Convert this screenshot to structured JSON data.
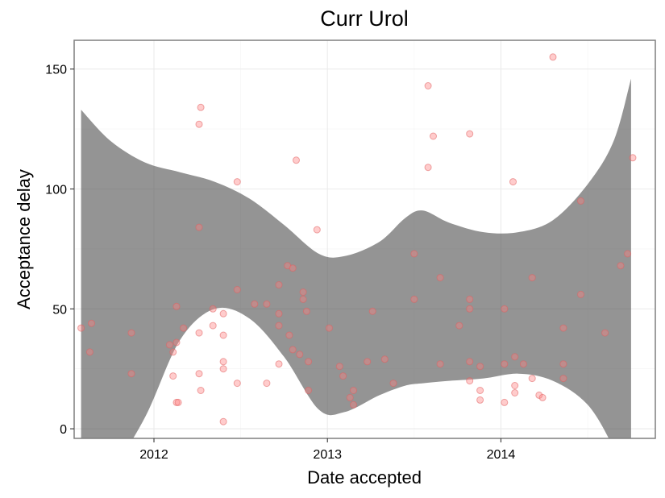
{
  "chart_data": {
    "type": "scatter",
    "title": "Curr Urol",
    "xlabel": "Date accepted",
    "ylabel": "Acceptance delay",
    "x_ticks": [
      "2012",
      "2013",
      "2014"
    ],
    "y_ticks": [
      "0",
      "50",
      "100",
      "150"
    ],
    "xlim": [
      2011.54,
      2014.89
    ],
    "ylim": [
      -4,
      162
    ],
    "grid": true,
    "point_color": "#ff7f7f",
    "band_color": "#4d4d4d",
    "points": [
      {
        "x": 2011.58,
        "y": 42
      },
      {
        "x": 2011.64,
        "y": 44
      },
      {
        "x": 2011.63,
        "y": 32
      },
      {
        "x": 2011.87,
        "y": 40
      },
      {
        "x": 2011.87,
        "y": 23
      },
      {
        "x": 2012.09,
        "y": 35
      },
      {
        "x": 2012.11,
        "y": 32
      },
      {
        "x": 2012.11,
        "y": 22
      },
      {
        "x": 2012.13,
        "y": 51
      },
      {
        "x": 2012.13,
        "y": 36
      },
      {
        "x": 2012.13,
        "y": 11
      },
      {
        "x": 2012.14,
        "y": 11
      },
      {
        "x": 2012.17,
        "y": 42
      },
      {
        "x": 2012.26,
        "y": 127
      },
      {
        "x": 2012.27,
        "y": 134
      },
      {
        "x": 2012.26,
        "y": 84
      },
      {
        "x": 2012.26,
        "y": 40
      },
      {
        "x": 2012.26,
        "y": 23
      },
      {
        "x": 2012.27,
        "y": 16
      },
      {
        "x": 2012.34,
        "y": 50
      },
      {
        "x": 2012.34,
        "y": 43
      },
      {
        "x": 2012.4,
        "y": 48
      },
      {
        "x": 2012.4,
        "y": 39
      },
      {
        "x": 2012.4,
        "y": 28
      },
      {
        "x": 2012.4,
        "y": 25
      },
      {
        "x": 2012.4,
        "y": 3
      },
      {
        "x": 2012.48,
        "y": 103
      },
      {
        "x": 2012.48,
        "y": 58
      },
      {
        "x": 2012.48,
        "y": 19
      },
      {
        "x": 2012.58,
        "y": 52
      },
      {
        "x": 2012.65,
        "y": 52
      },
      {
        "x": 2012.65,
        "y": 19
      },
      {
        "x": 2012.72,
        "y": 60
      },
      {
        "x": 2012.72,
        "y": 48
      },
      {
        "x": 2012.72,
        "y": 43
      },
      {
        "x": 2012.72,
        "y": 27
      },
      {
        "x": 2012.77,
        "y": 68
      },
      {
        "x": 2012.78,
        "y": 39
      },
      {
        "x": 2012.8,
        "y": 67
      },
      {
        "x": 2012.8,
        "y": 33
      },
      {
        "x": 2012.82,
        "y": 112
      },
      {
        "x": 2012.84,
        "y": 31
      },
      {
        "x": 2012.86,
        "y": 57
      },
      {
        "x": 2012.86,
        "y": 54
      },
      {
        "x": 2012.88,
        "y": 49
      },
      {
        "x": 2012.89,
        "y": 28
      },
      {
        "x": 2012.89,
        "y": 16
      },
      {
        "x": 2012.94,
        "y": 83
      },
      {
        "x": 2013.01,
        "y": 42
      },
      {
        "x": 2013.07,
        "y": 26
      },
      {
        "x": 2013.09,
        "y": 22
      },
      {
        "x": 2013.13,
        "y": 13
      },
      {
        "x": 2013.15,
        "y": 16
      },
      {
        "x": 2013.15,
        "y": 10
      },
      {
        "x": 2013.23,
        "y": 28
      },
      {
        "x": 2013.26,
        "y": 49
      },
      {
        "x": 2013.33,
        "y": 29
      },
      {
        "x": 2013.38,
        "y": 19
      },
      {
        "x": 2013.5,
        "y": 73
      },
      {
        "x": 2013.5,
        "y": 54
      },
      {
        "x": 2013.58,
        "y": 143
      },
      {
        "x": 2013.58,
        "y": 109
      },
      {
        "x": 2013.61,
        "y": 122
      },
      {
        "x": 2013.65,
        "y": 63
      },
      {
        "x": 2013.65,
        "y": 27
      },
      {
        "x": 2013.76,
        "y": 43
      },
      {
        "x": 2013.82,
        "y": 123
      },
      {
        "x": 2013.82,
        "y": 54
      },
      {
        "x": 2013.82,
        "y": 50
      },
      {
        "x": 2013.82,
        "y": 28
      },
      {
        "x": 2013.82,
        "y": 20
      },
      {
        "x": 2013.88,
        "y": 26
      },
      {
        "x": 2013.88,
        "y": 16
      },
      {
        "x": 2013.88,
        "y": 12
      },
      {
        "x": 2014.02,
        "y": 50
      },
      {
        "x": 2014.02,
        "y": 27
      },
      {
        "x": 2014.02,
        "y": 11
      },
      {
        "x": 2014.07,
        "y": 103
      },
      {
        "x": 2014.08,
        "y": 30
      },
      {
        "x": 2014.08,
        "y": 18
      },
      {
        "x": 2014.08,
        "y": 15
      },
      {
        "x": 2014.13,
        "y": 27
      },
      {
        "x": 2014.18,
        "y": 63
      },
      {
        "x": 2014.18,
        "y": 21
      },
      {
        "x": 2014.22,
        "y": 14
      },
      {
        "x": 2014.24,
        "y": 13
      },
      {
        "x": 2014.3,
        "y": 155
      },
      {
        "x": 2014.36,
        "y": 42
      },
      {
        "x": 2014.36,
        "y": 27
      },
      {
        "x": 2014.36,
        "y": 21
      },
      {
        "x": 2014.46,
        "y": 95
      },
      {
        "x": 2014.46,
        "y": 56
      },
      {
        "x": 2014.6,
        "y": 40
      },
      {
        "x": 2014.69,
        "y": 68
      },
      {
        "x": 2014.73,
        "y": 73
      },
      {
        "x": 2014.76,
        "y": 113
      }
    ],
    "band": {
      "x": [
        2011.58,
        2011.75,
        2011.95,
        2012.15,
        2012.35,
        2012.55,
        2012.75,
        2012.95,
        2013.1,
        2013.3,
        2013.45,
        2013.55,
        2013.7,
        2013.9,
        2014.1,
        2014.3,
        2014.5,
        2014.65,
        2014.75
      ],
      "upper": [
        133,
        120,
        111,
        107,
        103,
        96,
        85,
        73,
        72,
        78,
        88,
        91,
        86,
        82,
        82,
        87,
        102,
        120,
        146
      ],
      "lower": [
        -30,
        -18,
        5,
        37,
        50,
        46,
        30,
        8,
        7,
        14,
        18,
        19,
        20,
        21,
        23,
        20,
        10,
        -8,
        -25
      ]
    }
  }
}
